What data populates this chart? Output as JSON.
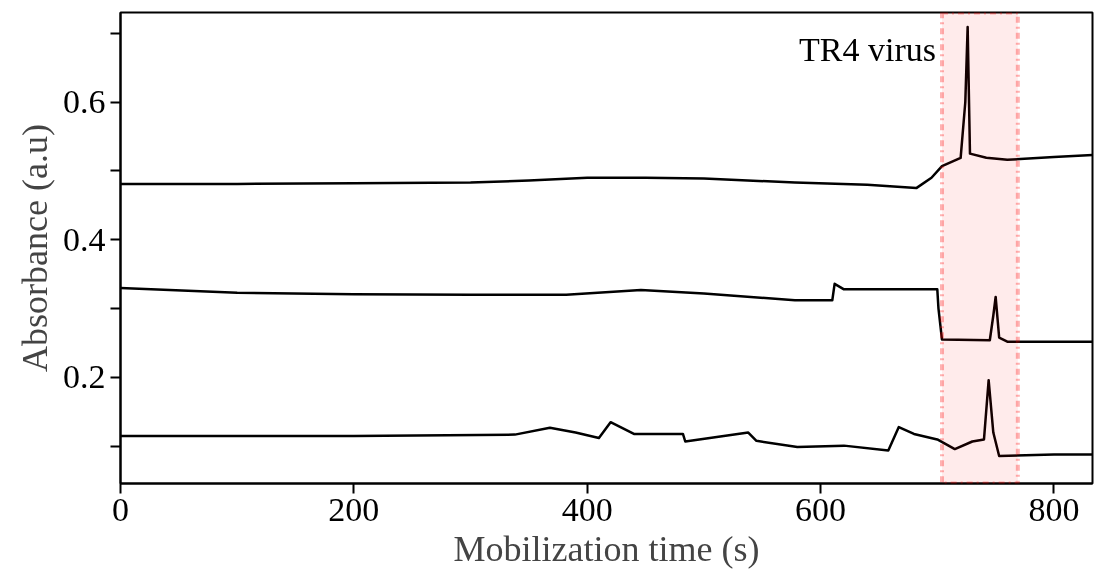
{
  "chart_data": {
    "type": "line",
    "xlabel": "Mobilization time (s)",
    "ylabel": "Absorbance (a.u)",
    "xlim": [
      0,
      833
    ],
    "ylim": [
      0.046,
      0.73
    ],
    "xticks": [
      0,
      200,
      400,
      600,
      800
    ],
    "yticks": [
      {
        "value": 0.1,
        "label": null
      },
      {
        "value": 0.2,
        "label": "0.2"
      },
      {
        "value": 0.3,
        "label": null
      },
      {
        "value": 0.4,
        "label": "0.4"
      },
      {
        "value": 0.5,
        "label": null
      },
      {
        "value": 0.6,
        "label": "0.6"
      },
      {
        "value": 0.7,
        "label": null
      }
    ],
    "grid": false,
    "line_style": "solid",
    "marker": "none",
    "bands": [
      {
        "axis": "x",
        "from": 704,
        "to": 769,
        "label": "TR4 virus",
        "color": "#ff0000"
      }
    ],
    "series": [
      {
        "color": "#000000",
        "x": [
          0,
          100,
          200,
          300,
          350,
          400,
          450,
          500,
          578,
          640,
          682,
          695,
          704,
          720,
          724,
          726,
          728,
          742,
          760,
          800,
          833
        ],
        "values": [
          0.481,
          0.481,
          0.482,
          0.483,
          0.486,
          0.49,
          0.49,
          0.489,
          0.483,
          0.48,
          0.475,
          0.49,
          0.507,
          0.519,
          0.6,
          0.709,
          0.525,
          0.519,
          0.516,
          0.52,
          0.523
        ]
      },
      {
        "color": "#000000",
        "x": [
          0,
          100,
          200,
          300,
          382,
          446,
          500,
          578,
          610,
          612,
          620,
          700,
          701,
          704,
          745,
          748,
          750,
          753,
          760,
          800,
          833
        ],
        "values": [
          0.33,
          0.323,
          0.321,
          0.32,
          0.32,
          0.327,
          0.322,
          0.312,
          0.312,
          0.336,
          0.328,
          0.328,
          0.3,
          0.255,
          0.254,
          0.29,
          0.317,
          0.258,
          0.252,
          0.252,
          0.252
        ]
      },
      {
        "color": "#000000",
        "x": [
          0,
          200,
          338,
          368,
          390,
          410,
          420,
          440,
          482,
          484,
          538,
          545,
          580,
          620,
          658,
          667,
          680,
          700,
          715,
          730,
          740,
          744,
          748,
          753,
          800,
          833
        ],
        "values": [
          0.115,
          0.115,
          0.117,
          0.127,
          0.12,
          0.112,
          0.135,
          0.118,
          0.118,
          0.107,
          0.12,
          0.108,
          0.099,
          0.101,
          0.094,
          0.128,
          0.118,
          0.11,
          0.096,
          0.107,
          0.11,
          0.196,
          0.12,
          0.086,
          0.088,
          0.088
        ]
      }
    ]
  }
}
